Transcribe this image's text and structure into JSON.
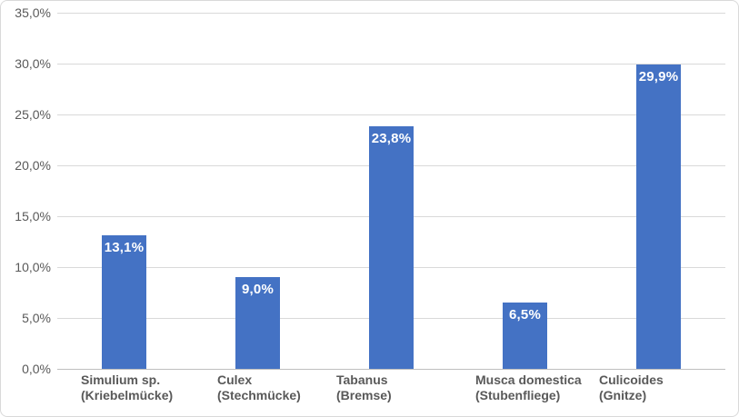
{
  "chart_data": {
    "type": "bar",
    "title": "",
    "categories": [
      "Simulium sp.\n(Kriebelmücke)",
      "Culex\n(Stechmücke)",
      "Tabanus\n(Bremse)",
      "Musca domestica\n(Stubenfliege)",
      "Culicoides\n(Gnitze)"
    ],
    "values": [
      13.1,
      9.0,
      23.8,
      6.5,
      29.9
    ],
    "value_labels": [
      "13,1%",
      "9,0%",
      "23,8%",
      "6,5%",
      "29,9%"
    ],
    "xlabel": "",
    "ylabel": "",
    "y_axis": {
      "min": 0,
      "max": 35,
      "step": 5,
      "tick_labels": [
        "0,0%",
        "5,0%",
        "10,0%",
        "15,0%",
        "20,0%",
        "25,0%",
        "30,0%",
        "35,0%"
      ]
    },
    "grid": true,
    "legend": false,
    "colors": {
      "bar": "#4472C4",
      "value_label": "#FFFFFF",
      "gridline": "#D9D9D9",
      "axis_line": "#BFBFBF",
      "tick_text": "#595959",
      "category_text": "#595959",
      "chart_border": "#D9D9D9",
      "background": "#FFFFFF"
    }
  }
}
